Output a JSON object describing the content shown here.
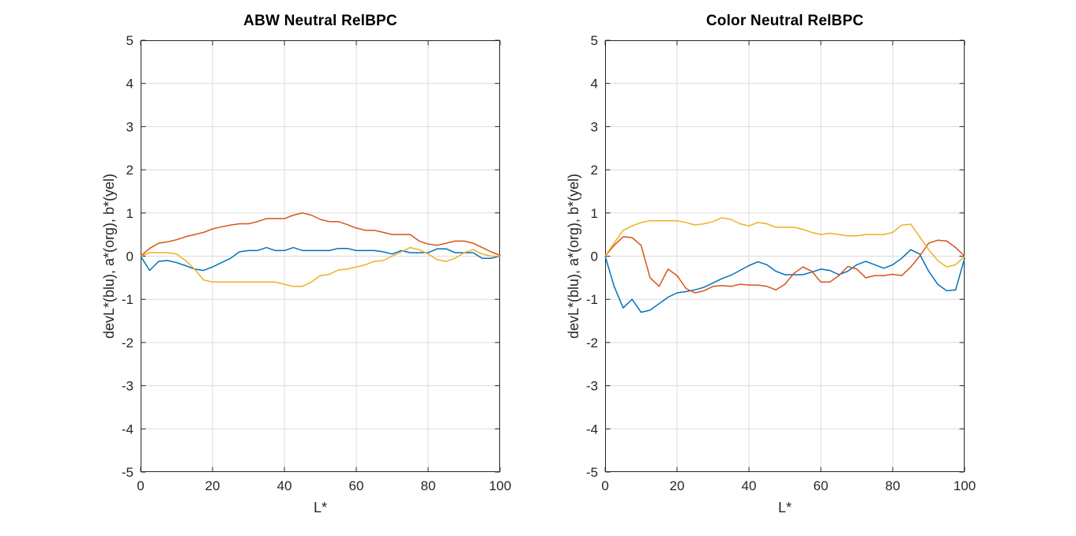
{
  "figure": {
    "background": "#ffffff"
  },
  "palette": {
    "blue": "#0072BD",
    "orange": "#D95319",
    "yellow": "#EDB120",
    "axis": "#262626",
    "grid": "#dcdcdc",
    "title_color": "#000000"
  },
  "chart_data": [
    {
      "type": "line",
      "title": "ABW Neutral RelBPC",
      "xlabel": "L*",
      "ylabel": "devL*(blu), a*(org), b*(yel)",
      "xlim": [
        0,
        100
      ],
      "ylim": [
        -5,
        5
      ],
      "xticks": [
        0,
        20,
        40,
        60,
        80,
        100
      ],
      "yticks": [
        -5,
        -4,
        -3,
        -2,
        -1,
        0,
        1,
        2,
        3,
        4,
        5
      ],
      "grid": true,
      "legend": "none",
      "x": [
        0,
        2.5,
        5,
        7.5,
        10,
        12.5,
        15,
        17.5,
        20,
        22.5,
        25,
        27.5,
        30,
        32.5,
        35,
        37.5,
        40,
        42.5,
        45,
        47.5,
        50,
        52.5,
        55,
        57.5,
        60,
        62.5,
        65,
        67.5,
        70,
        72.5,
        75,
        77.5,
        80,
        82.5,
        85,
        87.5,
        90,
        92.5,
        95,
        97.5,
        100
      ],
      "series": [
        {
          "id": "blu",
          "name": "devL* (blu)",
          "color": "#0072BD",
          "values": [
            0,
            -0.33,
            -0.12,
            -0.1,
            -0.15,
            -0.22,
            -0.3,
            -0.33,
            -0.25,
            -0.15,
            -0.05,
            0.1,
            0.13,
            0.13,
            0.2,
            0.13,
            0.13,
            0.2,
            0.13,
            0.13,
            0.13,
            0.13,
            0.18,
            0.18,
            0.13,
            0.13,
            0.13,
            0.1,
            0.05,
            0.13,
            0.08,
            0.08,
            0.08,
            0.17,
            0.17,
            0.08,
            0.08,
            0.08,
            -0.05,
            -0.05,
            0
          ]
        },
        {
          "id": "org",
          "name": "a* (org)",
          "color": "#D95319",
          "values": [
            0,
            0.18,
            0.3,
            0.33,
            0.38,
            0.45,
            0.5,
            0.55,
            0.63,
            0.68,
            0.72,
            0.75,
            0.75,
            0.8,
            0.87,
            0.87,
            0.87,
            0.95,
            1.0,
            0.95,
            0.85,
            0.8,
            0.8,
            0.73,
            0.65,
            0.6,
            0.6,
            0.55,
            0.5,
            0.5,
            0.5,
            0.35,
            0.28,
            0.25,
            0.3,
            0.35,
            0.35,
            0.3,
            0.2,
            0.1,
            0.02
          ]
        },
        {
          "id": "yel",
          "name": "b* (yel)",
          "color": "#EDB120",
          "values": [
            0,
            0.08,
            0.08,
            0.08,
            0.05,
            -0.1,
            -0.3,
            -0.55,
            -0.6,
            -0.6,
            -0.6,
            -0.6,
            -0.6,
            -0.6,
            -0.6,
            -0.6,
            -0.65,
            -0.7,
            -0.7,
            -0.6,
            -0.45,
            -0.42,
            -0.32,
            -0.3,
            -0.25,
            -0.2,
            -0.12,
            -0.1,
            0,
            0.1,
            0.2,
            0.15,
            0.05,
            -0.08,
            -0.12,
            -0.05,
            0.08,
            0.15,
            0.05,
            0,
            0
          ]
        }
      ]
    },
    {
      "type": "line",
      "title": "Color Neutral RelBPC",
      "xlabel": "L*",
      "ylabel": "devL*(blu), a*(org), b*(yel)",
      "xlim": [
        0,
        100
      ],
      "ylim": [
        -5,
        5
      ],
      "xticks": [
        0,
        20,
        40,
        60,
        80,
        100
      ],
      "yticks": [
        -5,
        -4,
        -3,
        -2,
        -1,
        0,
        1,
        2,
        3,
        4,
        5
      ],
      "grid": true,
      "legend": "none",
      "x": [
        0,
        2.5,
        5,
        7.5,
        10,
        12.5,
        15,
        17.5,
        20,
        22.5,
        25,
        27.5,
        30,
        32.5,
        35,
        37.5,
        40,
        42.5,
        45,
        47.5,
        50,
        52.5,
        55,
        57.5,
        60,
        62.5,
        65,
        67.5,
        70,
        72.5,
        75,
        77.5,
        80,
        82.5,
        85,
        87.5,
        90,
        92.5,
        95,
        97.5,
        100
      ],
      "series": [
        {
          "id": "blu",
          "name": "devL* (blu)",
          "color": "#0072BD",
          "values": [
            0,
            -0.7,
            -1.2,
            -1.0,
            -1.3,
            -1.25,
            -1.1,
            -0.95,
            -0.85,
            -0.82,
            -0.78,
            -0.72,
            -0.62,
            -0.52,
            -0.44,
            -0.33,
            -0.22,
            -0.13,
            -0.2,
            -0.35,
            -0.43,
            -0.43,
            -0.43,
            -0.37,
            -0.3,
            -0.33,
            -0.43,
            -0.35,
            -0.2,
            -0.12,
            -0.2,
            -0.28,
            -0.2,
            -0.05,
            0.15,
            0.05,
            -0.35,
            -0.65,
            -0.8,
            -0.78,
            -0.05
          ]
        },
        {
          "id": "org",
          "name": "a* (org)",
          "color": "#D95319",
          "values": [
            0,
            0.25,
            0.45,
            0.43,
            0.25,
            -0.5,
            -0.7,
            -0.3,
            -0.45,
            -0.75,
            -0.85,
            -0.8,
            -0.7,
            -0.68,
            -0.7,
            -0.65,
            -0.67,
            -0.67,
            -0.7,
            -0.78,
            -0.65,
            -0.4,
            -0.25,
            -0.35,
            -0.6,
            -0.6,
            -0.45,
            -0.24,
            -0.3,
            -0.5,
            -0.45,
            -0.45,
            -0.42,
            -0.45,
            -0.25,
            0.0,
            0.3,
            0.37,
            0.35,
            0.2,
            0
          ]
        },
        {
          "id": "yel",
          "name": "b* (yel)",
          "color": "#EDB120",
          "values": [
            0,
            0.3,
            0.6,
            0.7,
            0.78,
            0.82,
            0.82,
            0.82,
            0.82,
            0.78,
            0.72,
            0.75,
            0.8,
            0.89,
            0.85,
            0.75,
            0.7,
            0.78,
            0.75,
            0.67,
            0.67,
            0.67,
            0.62,
            0.55,
            0.5,
            0.53,
            0.5,
            0.47,
            0.47,
            0.5,
            0.5,
            0.5,
            0.55,
            0.72,
            0.74,
            0.45,
            0.15,
            -0.1,
            -0.25,
            -0.2,
            0
          ]
        }
      ]
    }
  ]
}
